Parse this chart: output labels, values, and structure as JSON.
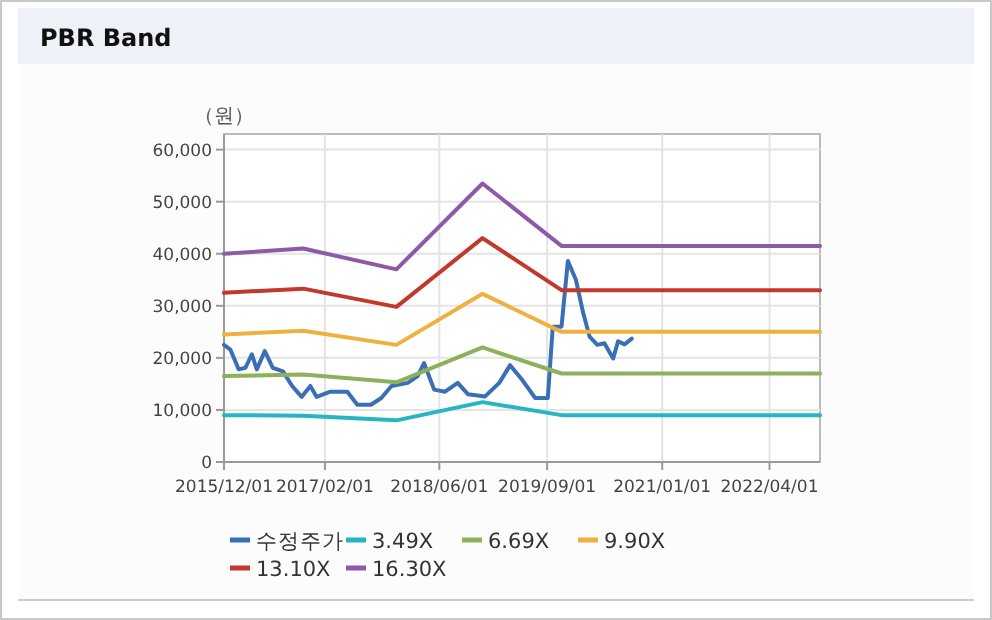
{
  "chart_data": {
    "type": "line",
    "title": "PBR Band",
    "ylabel": "（원）",
    "xlim": [
      "2015-12-01",
      "2022-11-01"
    ],
    "xticks": [
      {
        "value": "2015-12-01",
        "label": "2015/12/01"
      },
      {
        "value": "2017-02-01",
        "label": "2017/02/01"
      },
      {
        "value": "2018-06-01",
        "label": "2018/06/01"
      },
      {
        "value": "2019-09-01",
        "label": "2019/09/01"
      },
      {
        "value": "2021-01-01",
        "label": "2021/01/01"
      },
      {
        "value": "2022-04-01",
        "label": "2022/04/01"
      }
    ],
    "ylim": [
      0,
      63000
    ],
    "yticks": [
      0,
      {
        "value": 10000,
        "label": "10,000"
      },
      {
        "value": 20000,
        "label": "20,000"
      },
      {
        "value": 30000,
        "label": "30,000"
      },
      {
        "value": 40000,
        "label": "40,000"
      },
      {
        "value": 50000,
        "label": "50,000"
      },
      {
        "value": 60000,
        "label": "60,000"
      }
    ],
    "grid": true,
    "legend": "bottom",
    "line_style": "solid",
    "marker": "none",
    "series": [
      {
        "name": "수정주가",
        "color": "#3a6fb5",
        "x": [
          "2015-12-01",
          "2015-12-28",
          "2016-02-01",
          "2016-03-01",
          "2016-03-28",
          "2016-04-18",
          "2016-05-22",
          "2016-06-25",
          "2016-08-07",
          "2016-09-15",
          "2016-10-25",
          "2016-12-01",
          "2016-12-28",
          "2017-02-24",
          "2017-05-07",
          "2017-06-18",
          "2017-08-15",
          "2017-09-28",
          "2017-11-10",
          "2018-01-18",
          "2018-03-01",
          "2018-03-28",
          "2018-05-10",
          "2018-06-25",
          "2018-08-18",
          "2018-10-01",
          "2018-12-12",
          "2019-02-10",
          "2019-03-28",
          "2019-05-18",
          "2019-07-12",
          "2019-09-04",
          "2019-09-25",
          "2019-11-01",
          "2019-11-28",
          "2020-01-01",
          "2020-02-01",
          "2020-02-28",
          "2020-04-01",
          "2020-05-01",
          "2020-06-07",
          "2020-06-28",
          "2020-07-25",
          "2020-08-25"
        ],
        "values": [
          22500,
          21600,
          17800,
          18100,
          20700,
          17800,
          21300,
          18100,
          17400,
          14600,
          12500,
          14600,
          12500,
          13500,
          13500,
          11000,
          11000,
          12300,
          14600,
          15200,
          16500,
          19000,
          13900,
          13500,
          15200,
          13000,
          12600,
          15200,
          18600,
          15800,
          12300,
          12300,
          26000,
          26000,
          38600,
          35000,
          28600,
          24100,
          22500,
          22800,
          19900,
          23200,
          22600,
          23700
        ]
      },
      {
        "name": "3.49X",
        "color": "#26b5c2",
        "x": [
          "2015-12-01",
          "2016-11-01",
          "2017-12-01",
          "2018-12-01",
          "2019-11-01",
          "2022-11-01"
        ],
        "values": [
          9000,
          8900,
          8000,
          11500,
          9000,
          9000
        ]
      },
      {
        "name": "6.69X",
        "color": "#8db05a",
        "x": [
          "2015-12-01",
          "2016-11-01",
          "2017-12-01",
          "2018-12-01",
          "2019-11-01",
          "2022-11-01"
        ],
        "values": [
          16500,
          16800,
          15300,
          22000,
          17000,
          17000
        ]
      },
      {
        "name": "9.90X",
        "color": "#f0b040",
        "x": [
          "2015-12-01",
          "2016-11-01",
          "2017-12-01",
          "2018-12-01",
          "2019-11-01",
          "2022-11-01"
        ],
        "values": [
          24500,
          25200,
          22500,
          32300,
          25000,
          25000
        ]
      },
      {
        "name": "13.10X",
        "color": "#c0392b",
        "x": [
          "2015-12-01",
          "2016-11-01",
          "2017-12-01",
          "2018-12-01",
          "2019-11-01",
          "2022-11-01"
        ],
        "values": [
          32500,
          33300,
          29800,
          43000,
          33000,
          33000
        ]
      },
      {
        "name": "16.30X",
        "color": "#8e5aa8",
        "x": [
          "2015-12-01",
          "2016-11-01",
          "2017-12-01",
          "2018-12-01",
          "2019-11-01",
          "2022-11-01"
        ],
        "values": [
          40000,
          41000,
          37000,
          53500,
          41500,
          41500
        ]
      }
    ]
  }
}
